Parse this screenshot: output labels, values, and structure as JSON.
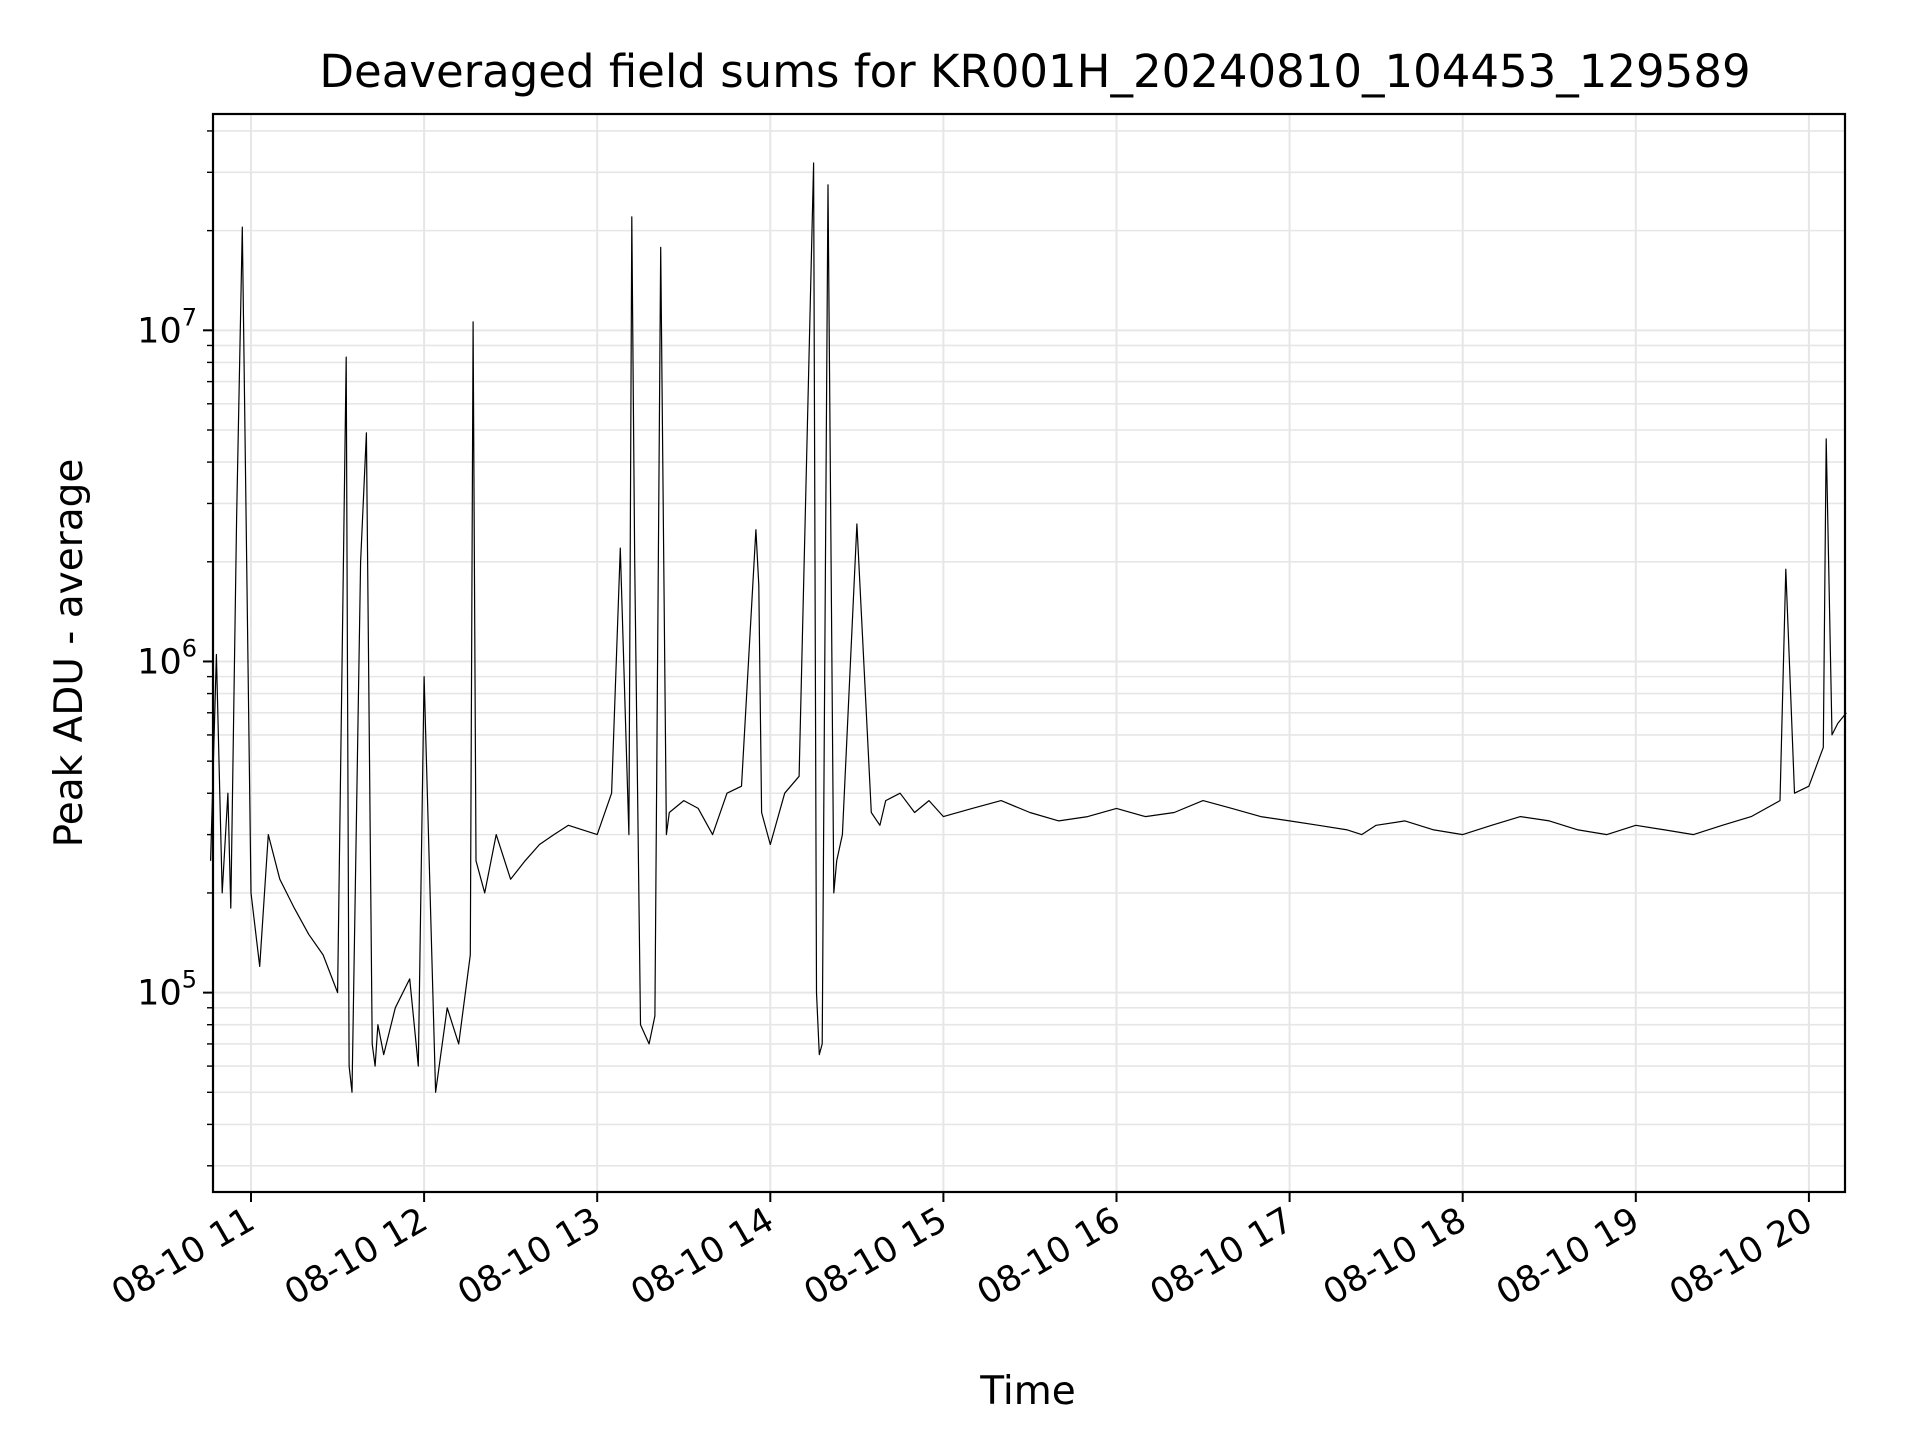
{
  "chart_data": {
    "type": "line",
    "title": "Deaveraged field sums for KR001H_20240810_104453_129589",
    "xlabel": "Time",
    "ylabel": "Peak ADU - average",
    "yscale": "log",
    "grid": true,
    "line_color": "#000000",
    "xlim": [
      "2024-08-10 10:46",
      "2024-08-10 20:14"
    ],
    "ylim": [
      25000,
      45000000
    ],
    "xticks": [
      {
        "label": "08-10 11",
        "hour": 11
      },
      {
        "label": "08-10 12",
        "hour": 12
      },
      {
        "label": "08-10 13",
        "hour": 13
      },
      {
        "label": "08-10 14",
        "hour": 14
      },
      {
        "label": "08-10 15",
        "hour": 15
      },
      {
        "label": "08-10 16",
        "hour": 16
      },
      {
        "label": "08-10 17",
        "hour": 17
      },
      {
        "label": "08-10 18",
        "hour": 18
      },
      {
        "label": "08-10 19",
        "hour": 19
      },
      {
        "label": "08-10 20",
        "hour": 20
      }
    ],
    "yticks": [
      {
        "base": "10",
        "exp": "5",
        "value": 100000
      },
      {
        "base": "10",
        "exp": "6",
        "value": 1000000
      },
      {
        "base": "10",
        "exp": "7",
        "value": 10000000
      }
    ],
    "series": [
      {
        "x": [
          "10:46",
          "10:48",
          "10:50",
          "10:52",
          "10:53",
          "10:55",
          "10:57",
          "11:00",
          "11:03",
          "11:06",
          "11:10",
          "11:15",
          "11:20",
          "11:25",
          "11:30",
          "11:33",
          "11:34",
          "11:35",
          "11:38",
          "11:40",
          "11:42",
          "11:43",
          "11:44",
          "11:46",
          "11:50",
          "11:55",
          "11:58",
          "12:00",
          "12:04",
          "12:08",
          "12:12",
          "12:16",
          "12:17",
          "12:18",
          "12:21",
          "12:25",
          "12:30",
          "12:35",
          "12:40",
          "12:45",
          "12:50",
          "12:55",
          "13:00",
          "13:05",
          "13:08",
          "13:11",
          "13:12",
          "13:13",
          "13:15",
          "13:18",
          "13:20",
          "13:22",
          "13:24",
          "13:25",
          "13:30",
          "13:35",
          "13:40",
          "13:45",
          "13:50",
          "13:55",
          "13:56",
          "13:57",
          "14:00",
          "14:05",
          "14:10",
          "14:15",
          "14:16",
          "14:17",
          "14:18",
          "14:20",
          "14:22",
          "14:23",
          "14:25",
          "14:30",
          "14:35",
          "14:38",
          "14:40",
          "14:45",
          "14:50",
          "14:55",
          "15:00",
          "15:10",
          "15:20",
          "15:30",
          "15:40",
          "15:50",
          "16:00",
          "16:10",
          "16:20",
          "16:30",
          "16:40",
          "16:50",
          "17:00",
          "17:10",
          "17:20",
          "17:25",
          "17:30",
          "17:40",
          "17:50",
          "18:00",
          "18:10",
          "18:20",
          "18:30",
          "18:40",
          "18:50",
          "19:00",
          "19:10",
          "19:20",
          "19:30",
          "19:40",
          "19:50",
          "19:52",
          "19:55",
          "20:00",
          "20:05",
          "20:06",
          "20:08",
          "20:10",
          "20:13"
        ],
        "y": [
          250000,
          1050000,
          200000,
          400000,
          180000,
          2700000,
          20500000,
          200000,
          120000,
          300000,
          220000,
          180000,
          150000,
          130000,
          100000,
          8300000,
          60000,
          50000,
          2000000,
          4900000,
          70000,
          60000,
          80000,
          65000,
          90000,
          110000,
          60000,
          900000,
          50000,
          90000,
          70000,
          130000,
          10600000,
          250000,
          200000,
          300000,
          220000,
          250000,
          280000,
          300000,
          320000,
          310000,
          300000,
          400000,
          2200000,
          300000,
          22000000,
          2000000,
          80000,
          70000,
          85000,
          17800000,
          300000,
          350000,
          380000,
          360000,
          300000,
          400000,
          420000,
          2500000,
          1700000,
          350000,
          280000,
          400000,
          450000,
          32000000,
          100000,
          65000,
          70000,
          27500000,
          200000,
          250000,
          300000,
          2600000,
          350000,
          320000,
          380000,
          400000,
          350000,
          380000,
          340000,
          360000,
          380000,
          350000,
          330000,
          340000,
          360000,
          340000,
          350000,
          380000,
          360000,
          340000,
          330000,
          320000,
          310000,
          300000,
          320000,
          330000,
          310000,
          300000,
          320000,
          340000,
          330000,
          310000,
          300000,
          320000,
          310000,
          300000,
          320000,
          340000,
          380000,
          1900000,
          400000,
          420000,
          550000,
          4700000,
          600000,
          650000,
          700000
        ]
      }
    ]
  }
}
